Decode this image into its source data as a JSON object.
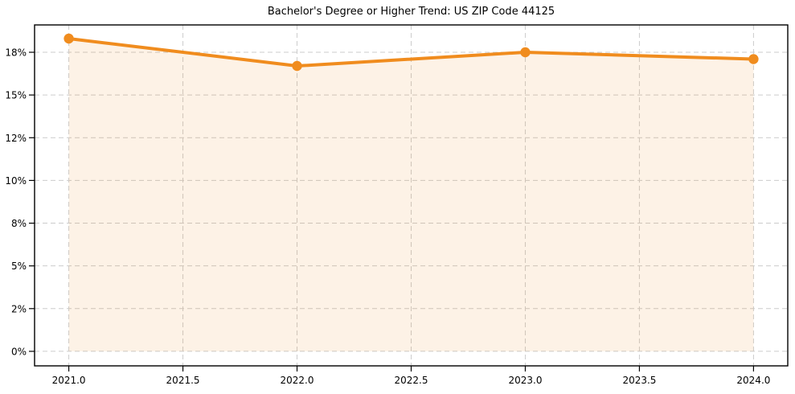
{
  "figure": {
    "background": "#ffffff"
  },
  "chart_data": {
    "type": "line",
    "title": "Bachelor's Degree or Higher Trend: US ZIP Code 44125",
    "x": [
      2021,
      2022,
      2023,
      2024
    ],
    "values": [
      18.3,
      16.7,
      17.5,
      17.1
    ],
    "xlabel": "",
    "ylabel": "",
    "xlim": [
      2020.85,
      2024.15
    ],
    "ylim": [
      -0.85,
      19.1
    ],
    "xticks": {
      "values": [
        2021.0,
        2021.5,
        2022.0,
        2022.5,
        2023.0,
        2023.5,
        2024.0
      ],
      "labels": [
        "2021.0",
        "2021.5",
        "2022.0",
        "2022.5",
        "2023.0",
        "2023.5",
        "2024.0"
      ]
    },
    "yticks": {
      "values": [
        0,
        2.5,
        5,
        7.5,
        10,
        12.5,
        15,
        17.5
      ],
      "labels": [
        "0%",
        "2%",
        "5%",
        "8%",
        "10%",
        "12%",
        "15%",
        "18%"
      ]
    },
    "grid": true,
    "grid_style": "dashed",
    "legend": false,
    "fill_to_zero": true,
    "marker": "circle",
    "colors": {
      "line": "#f08c1e",
      "fill": "rgba(240,140,30,0.11)",
      "grid": "#cccccc",
      "axis": "#000000",
      "text": "#000000",
      "background": "#ffffff"
    }
  }
}
